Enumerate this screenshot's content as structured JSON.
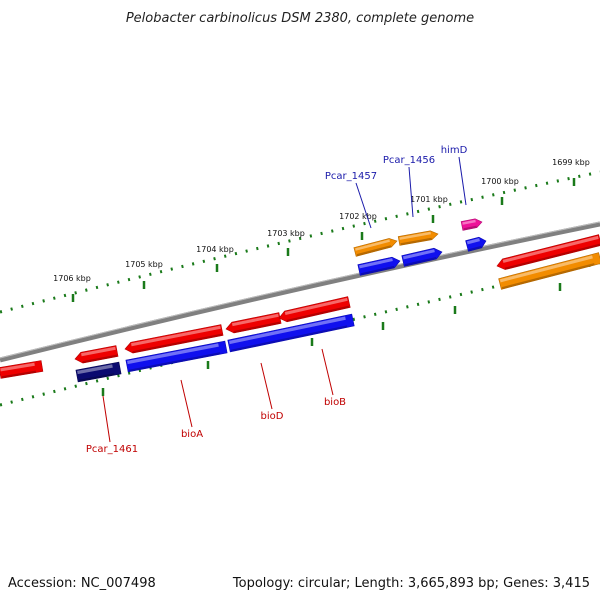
{
  "title": "Pelobacter carbinolicus DSM 2380, complete genome",
  "footer": {
    "accession": "Accession: NC_007498",
    "summary": "Topology: circular; Length: 3,665,893 bp; Genes: 3,415"
  },
  "colors": {
    "backbone": "#808080",
    "tick": "#1a7a1a",
    "forward_gene": "#ee0000",
    "reverse_gene": "#1010ee",
    "orange_gene": "#f28c00",
    "dark_gene": "#0a0a70",
    "pink_gene": "#ee1199",
    "label_blue": "#1a1aaa",
    "label_red": "#c00000"
  },
  "ticks": [
    {
      "label": "1699 kbp"
    },
    {
      "label": "1700 kbp"
    },
    {
      "label": "1701 kbp"
    },
    {
      "label": "1702 kbp"
    },
    {
      "label": "1703 kbp"
    },
    {
      "label": "1704 kbp"
    },
    {
      "label": "1705 kbp"
    },
    {
      "label": "1706 kbp"
    }
  ],
  "gene_labels": [
    {
      "text": "himD",
      "color": "blue"
    },
    {
      "text": "Pcar_1456",
      "color": "blue"
    },
    {
      "text": "Pcar_1457",
      "color": "blue"
    },
    {
      "text": "Pcar_1461",
      "color": "red"
    },
    {
      "text": "bioA",
      "color": "red"
    },
    {
      "text": "bioD",
      "color": "red"
    },
    {
      "text": "bioB",
      "color": "red"
    }
  ]
}
